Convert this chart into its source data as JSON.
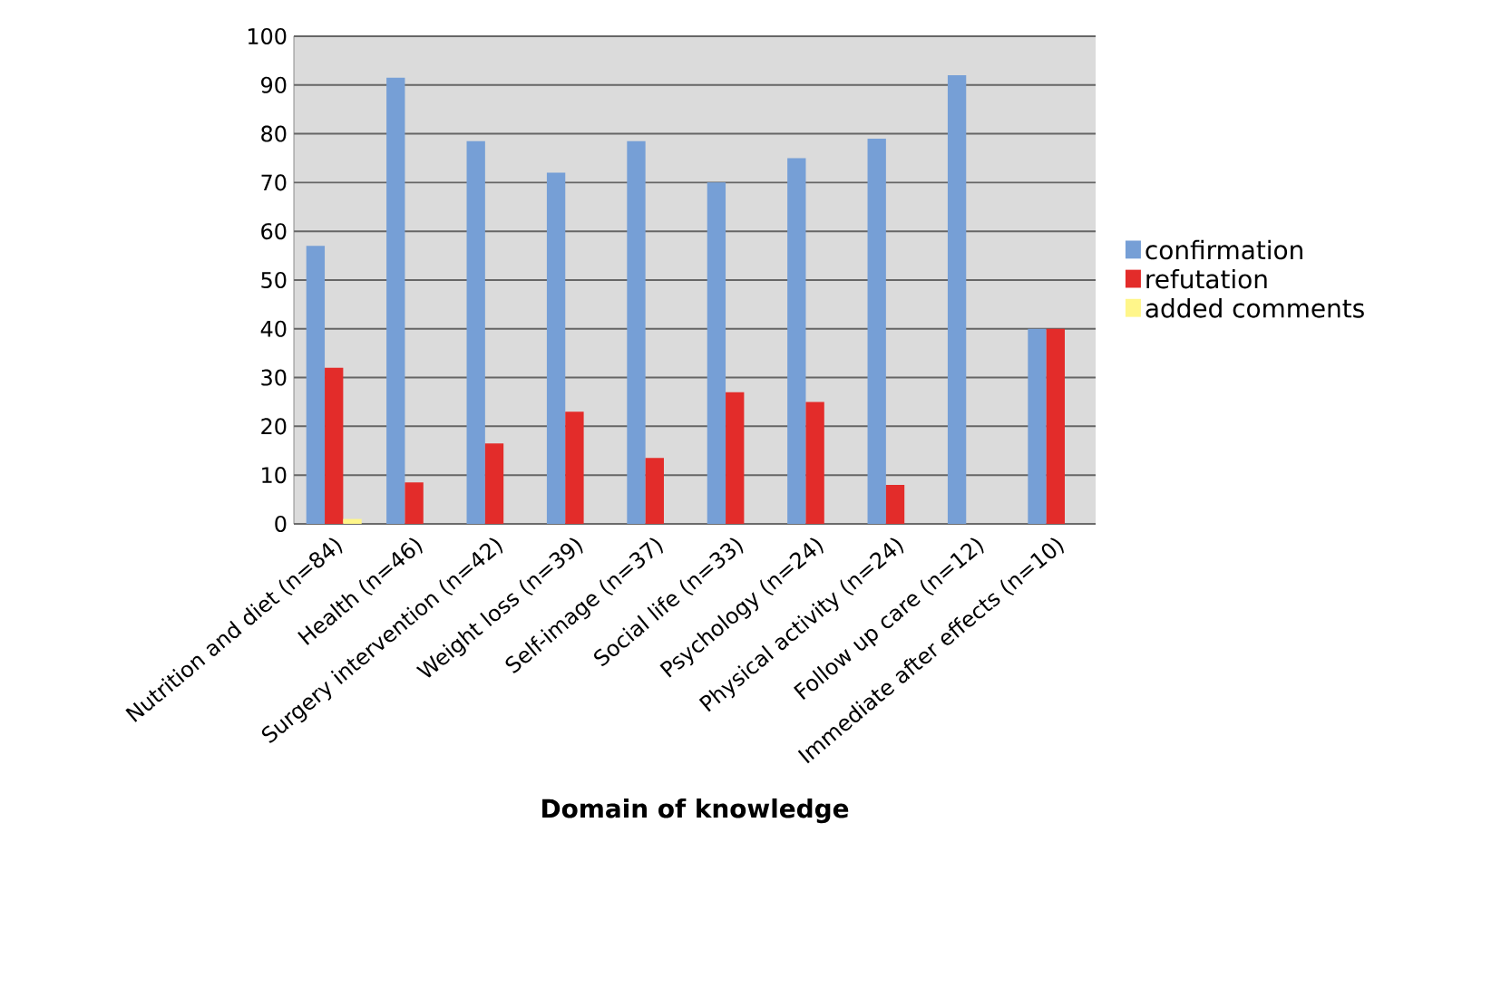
{
  "chart_data": {
    "type": "bar",
    "xlabel": "Domain of knowledge",
    "categories": [
      "Nutrition and diet (n=84)",
      "Health (n=46)",
      "Surgery intervention (n=42)",
      "Weight loss (n=39)",
      "Self-image (n=37)",
      "Social life (n=33)",
      "Psychology (n=24)",
      "Physical activity (n=24)",
      "Follow up care (n=12)",
      "Immediate after effects  (n=10)"
    ],
    "series": [
      {
        "name": "confirmation",
        "color": "#769fd6",
        "values": [
          57,
          91.5,
          78.5,
          72,
          78.5,
          70,
          75,
          79,
          92,
          40
        ]
      },
      {
        "name": "refutation",
        "color": "#e32c2a",
        "values": [
          32,
          8.5,
          16.5,
          23,
          13.5,
          27,
          25,
          8,
          0,
          40
        ]
      },
      {
        "name": "added comments",
        "color": "#fff68a",
        "values": [
          1,
          0,
          0,
          0,
          0,
          0,
          0,
          0,
          0,
          0
        ]
      }
    ],
    "ylim": [
      0,
      100
    ],
    "yticks": [
      0,
      10,
      20,
      30,
      40,
      50,
      60,
      70,
      80,
      90,
      100
    ],
    "grid": "y",
    "legend": "right"
  }
}
